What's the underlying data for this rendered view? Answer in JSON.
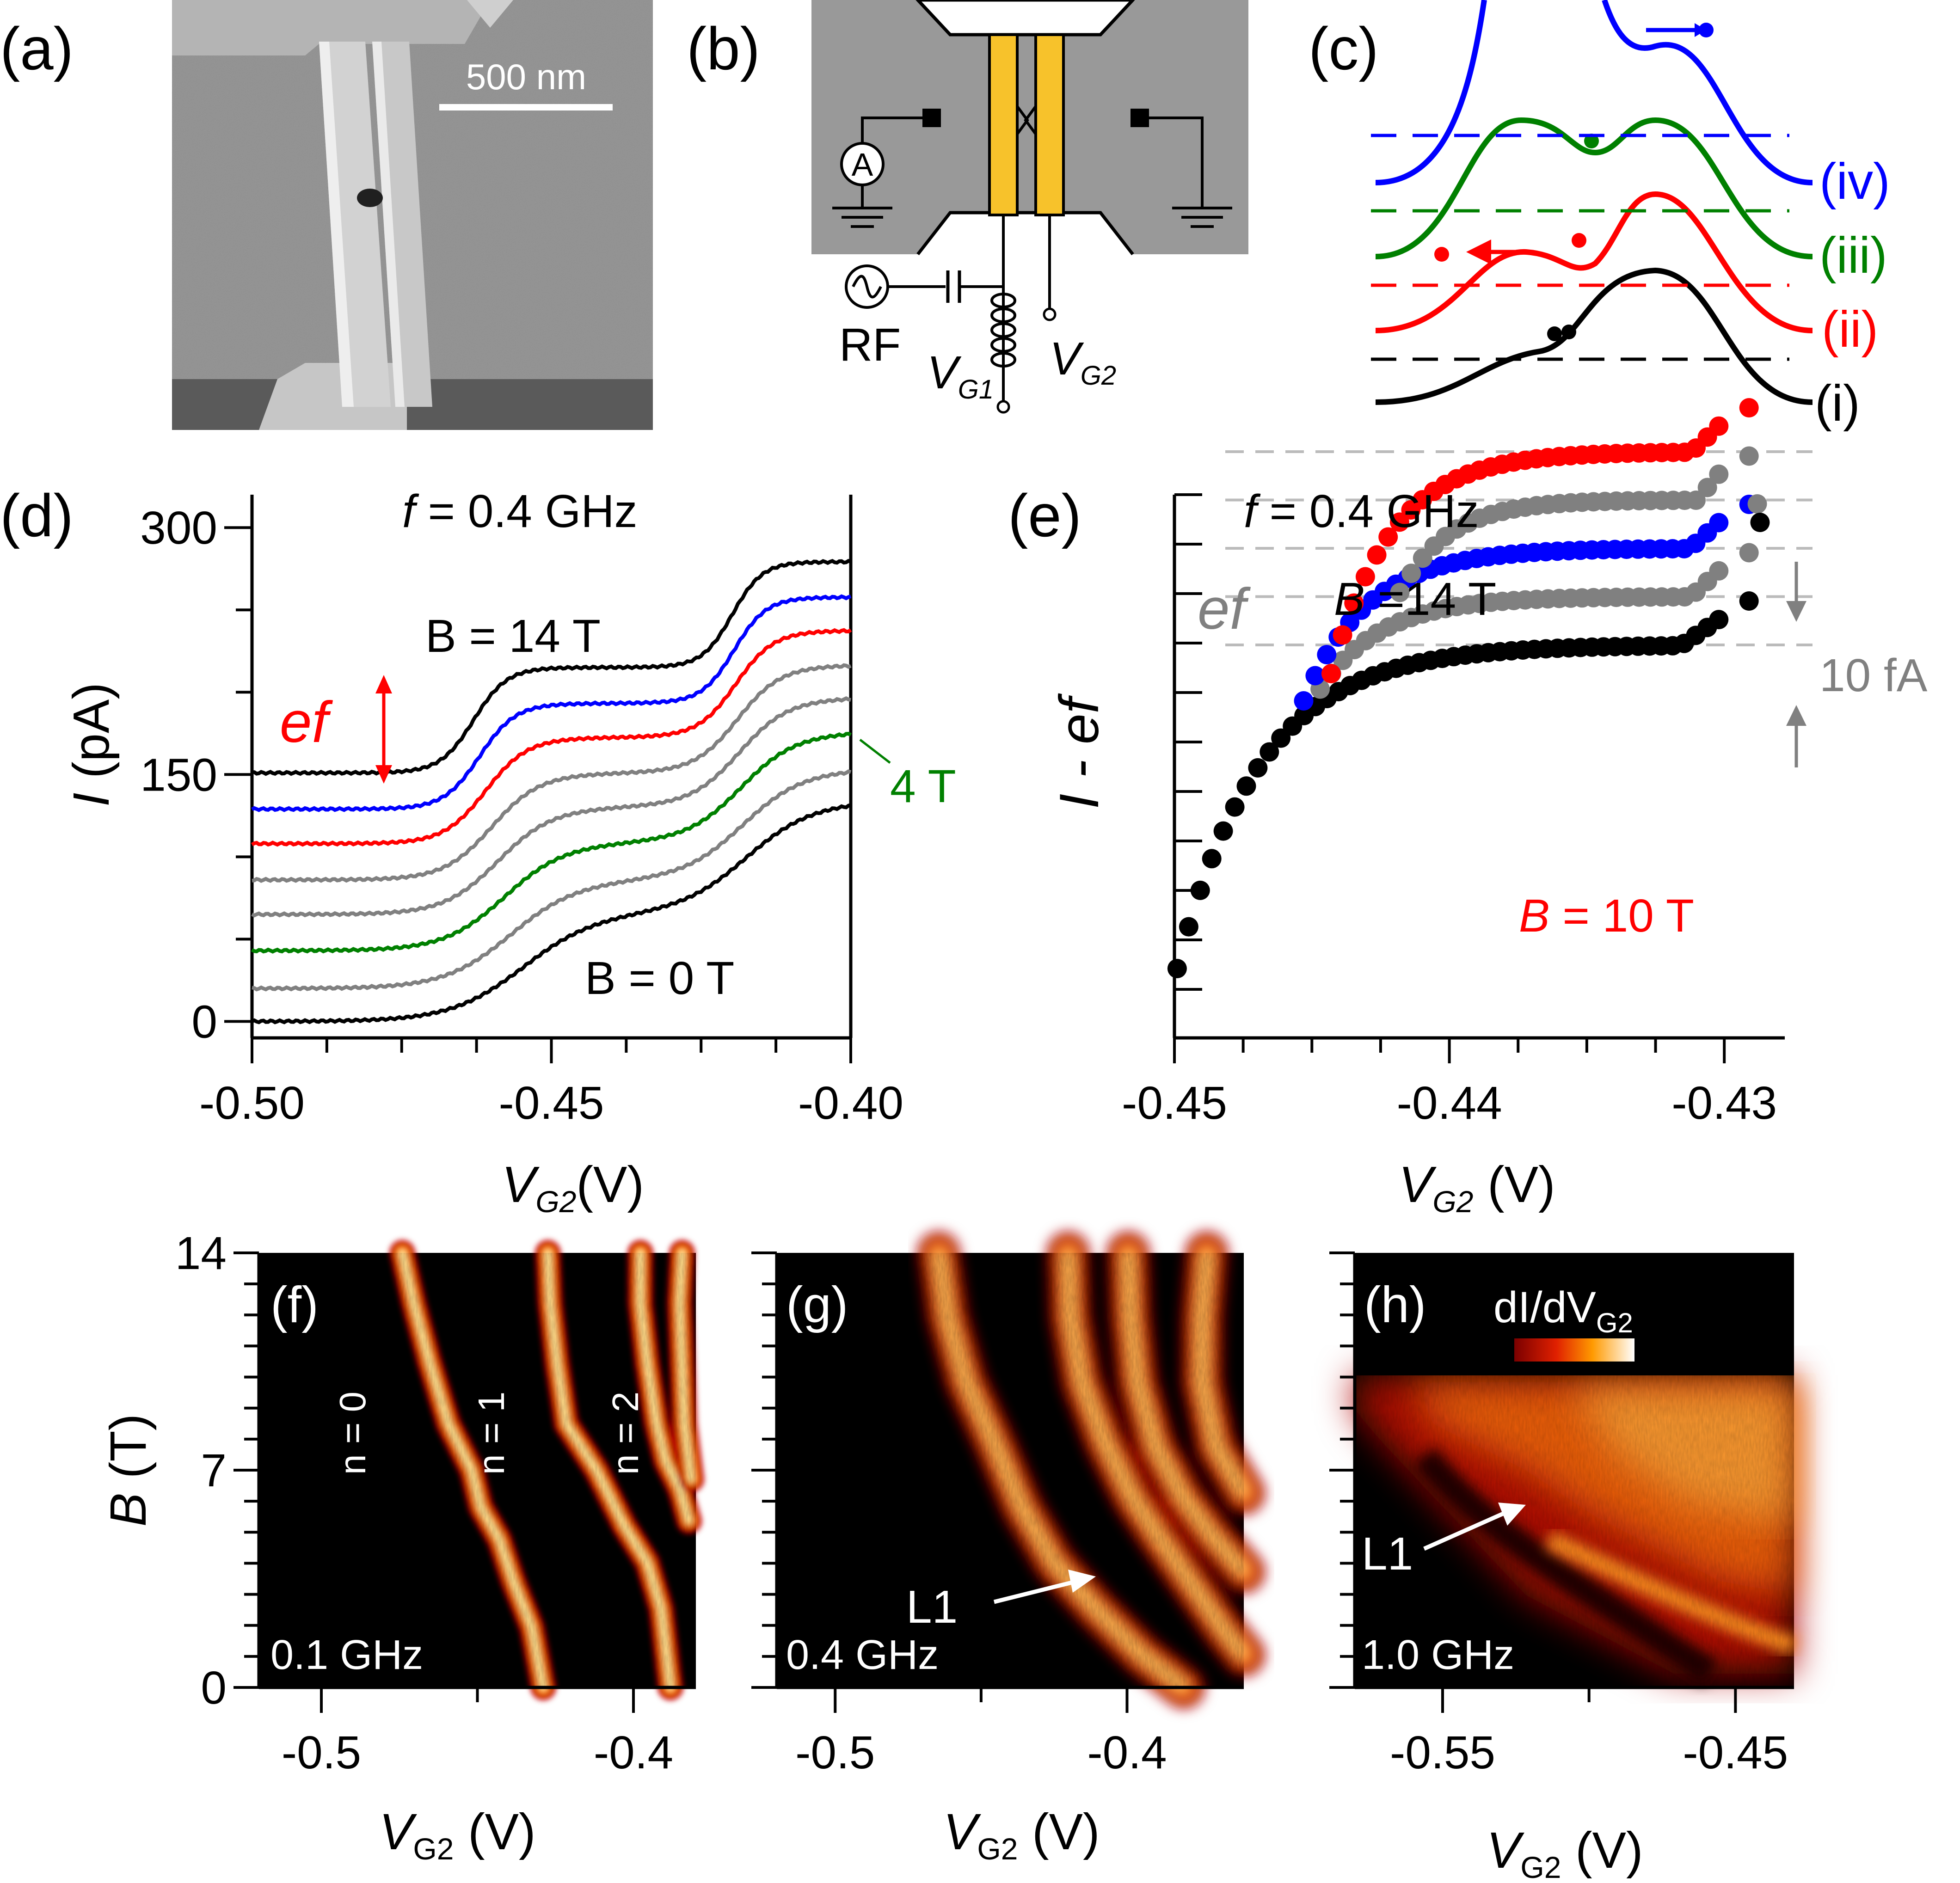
{
  "panel_labels": {
    "a": "(a)",
    "b": "(b)",
    "c": "(c)",
    "d": "(d)",
    "e": "(e)",
    "f": "(f)",
    "g": "(g)",
    "h": "(h)"
  },
  "panel_a": {
    "scale_bar": "500 nm"
  },
  "panel_b": {
    "ammeter": "A",
    "rf": "RF",
    "vg1": "V",
    "vg1_sub": "G1",
    "vg2": "V",
    "vg2_sub": "G2"
  },
  "panel_c": {
    "labels": [
      "(i)",
      "(ii)",
      "(iii)",
      "(iv)"
    ],
    "colors": [
      "#000000",
      "#ff0000",
      "#008000",
      "#0000ff"
    ]
  },
  "panel_d": {
    "freq_label_f": "f",
    "freq_label_rest": " = 0.4 GHz",
    "b14": "B = 14 T",
    "b0": "B = 0 T",
    "ef": "ef",
    "four_t": "4 T",
    "ylabel_i": "I",
    "ylabel_rest": " (pA)",
    "xlabel_v": "V",
    "xlabel_sub": "G2",
    "xlabel_rest": "(V)",
    "yticks": [
      "0",
      "150",
      "300"
    ],
    "xticks": [
      "-0.50",
      "-0.45",
      "-0.40"
    ]
  },
  "panel_e": {
    "freq_label_f": "f",
    "freq_label_rest": " = 0.4 GHz",
    "b14_b": "B",
    "b14_rest": " =14 T",
    "b10_b": "B",
    "b10_rest": " = 10 T",
    "ef": "ef",
    "tenfa": "10 fA",
    "ylabel": "I - ef",
    "xlabel_v": "V",
    "xlabel_sub": "G2",
    "xlabel_rest": " (V)",
    "xticks": [
      "-0.45",
      "-0.44",
      "-0.43"
    ]
  },
  "panel_f": {
    "freq": "0.1 GHz",
    "n0": "n = 0",
    "n1": "n = 1",
    "n2": "n = 2",
    "xticks": [
      "-0.5",
      "-0.4"
    ],
    "yticks": [
      "0",
      "7",
      "14"
    ],
    "ylabel_b": "B",
    "ylabel_rest": " (T)"
  },
  "panel_g": {
    "freq": "0.4 GHz",
    "l1": "L1",
    "xticks": [
      "-0.5",
      "-0.4"
    ]
  },
  "panel_h": {
    "freq": "1.0 GHz",
    "l1": "L1",
    "xticks": [
      "-0.55",
      "-0.45"
    ],
    "colorbar": "dI/dV",
    "colorbar_sub": "G2"
  },
  "xlabel_fgh": {
    "v": "V",
    "sub": "G2",
    "rest": " (V)"
  },
  "chart_data": [
    {
      "type": "line",
      "title": "f = 0.4 GHz",
      "xlabel": "VG2(V)",
      "ylabel": "I (pA)",
      "xlim": [
        -0.5,
        -0.4
      ],
      "ylim": [
        -10,
        320
      ],
      "x_steps": {
        "step1_center": -0.457,
        "step2_center": -0.418
      },
      "series": [
        {
          "name": "B = 0 T",
          "color": "#000000",
          "base": 0,
          "step1_mid": -0.455,
          "step1_width": 0.006,
          "plateau_tilt": 0.5
        },
        {
          "color": "#808080",
          "base": 20,
          "step1_mid": -0.457,
          "step1_width": 0.0055,
          "plateau_tilt": 0.45
        },
        {
          "color": "#008000",
          "base": 43,
          "step1_mid": -0.458,
          "step1_width": 0.005,
          "plateau_tilt": 0.4
        },
        {
          "color": "#808080",
          "base": 65,
          "step1_mid": -0.459,
          "step1_width": 0.0045,
          "plateau_tilt": 0.3
        },
        {
          "color": "#808080",
          "base": 86,
          "step1_mid": -0.46,
          "step1_width": 0.004,
          "plateau_tilt": 0.2
        },
        {
          "color": "#ff0000",
          "base": 108,
          "step1_mid": -0.461,
          "step1_width": 0.0035,
          "plateau_tilt": 0.12
        },
        {
          "color": "#0000ff",
          "base": 129,
          "step1_mid": -0.462,
          "step1_width": 0.003,
          "plateau_tilt": 0.06
        },
        {
          "name": "B = 14 T",
          "color": "#000000",
          "base": 151,
          "step1_mid": -0.463,
          "step1_width": 0.0028,
          "plateau_tilt": 0.02
        }
      ]
    },
    {
      "type": "scatter",
      "title": "f = 0.4 GHz",
      "xlabel": "VG2 (V)",
      "ylabel": "I - ef",
      "xlim": [
        -0.45,
        -0.4278
      ],
      "plateau_levels_fA": [
        0,
        -10,
        -20,
        -30,
        -40
      ],
      "series": [
        {
          "name": "B =14 T",
          "color": "#000000",
          "x_start": -0.4499,
          "x_end": -0.4302,
          "plateau": 0
        },
        {
          "color": "#808080",
          "x_start": -0.4447,
          "x_end": -0.4302,
          "plateau": -10
        },
        {
          "color": "#0000ff",
          "x_start": -0.4453,
          "x_end": -0.4302,
          "plateau": -20
        },
        {
          "color": "#808080",
          "x_start": -0.4418,
          "x_end": -0.4302,
          "plateau": -30
        },
        {
          "name": "B = 10 T",
          "color": "#ff0000",
          "x_start": -0.4443,
          "x_end": -0.4302,
          "plateau": -40
        }
      ]
    },
    {
      "type": "heatmap",
      "title": "0.1 GHz",
      "xlabel": "VG2 (V)",
      "ylabel": "B (T)",
      "xlim": [
        -0.52,
        -0.38
      ],
      "ylim": [
        0,
        14
      ]
    },
    {
      "type": "heatmap",
      "title": "0.4 GHz",
      "xlabel": "VG2 (V)",
      "xlim": [
        -0.52,
        -0.36
      ],
      "ylim": [
        0,
        14
      ]
    },
    {
      "type": "heatmap",
      "title": "1.0 GHz",
      "xlabel": "VG2 (V)",
      "xlim": [
        -0.58,
        -0.43
      ],
      "ylim": [
        0,
        14
      ]
    }
  ]
}
